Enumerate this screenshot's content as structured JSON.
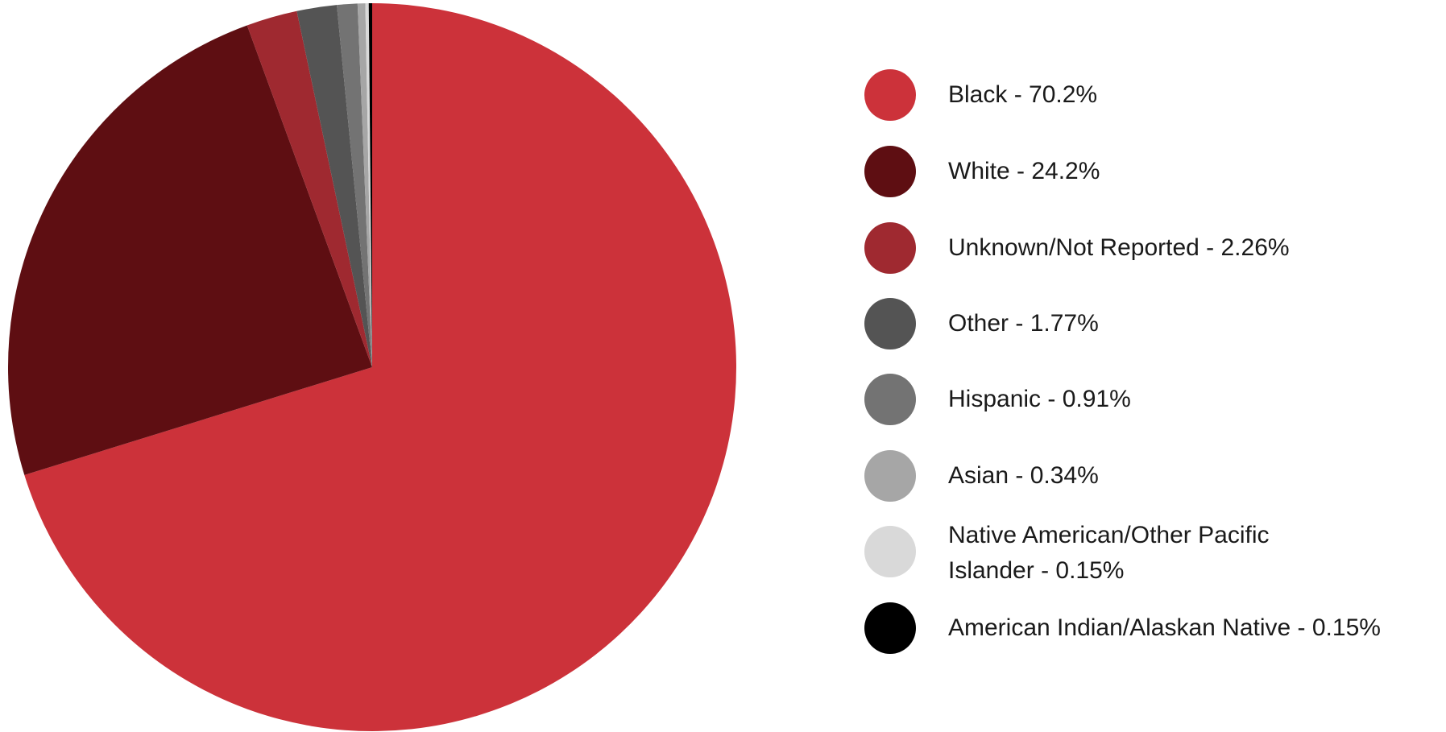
{
  "chart_data": {
    "type": "pie",
    "start_angle_deg": 0,
    "direction": "clockwise",
    "slices": [
      {
        "label": "Black - 70.2%",
        "value": 70.2,
        "color": "#cc323a"
      },
      {
        "label": "White - 24.2%",
        "value": 24.2,
        "color": "#5e0e12"
      },
      {
        "label": "Unknown/Not Reported - 2.26%",
        "value": 2.26,
        "color": "#9f2930"
      },
      {
        "label": "Other - 1.77%",
        "value": 1.77,
        "color": "#545454"
      },
      {
        "label": "Hispanic - 0.91%",
        "value": 0.91,
        "color": "#737373"
      },
      {
        "label": "Asian - 0.34%",
        "value": 0.34,
        "color": "#a6a6a6"
      },
      {
        "label": "Native American/Other Pacific Islander - 0.15%",
        "value": 0.15,
        "color": "#d9d9d9"
      },
      {
        "label": "American Indian/Alaskan Native - 0.15%",
        "value": 0.15,
        "color": "#000000"
      }
    ],
    "legend_position": "right"
  }
}
